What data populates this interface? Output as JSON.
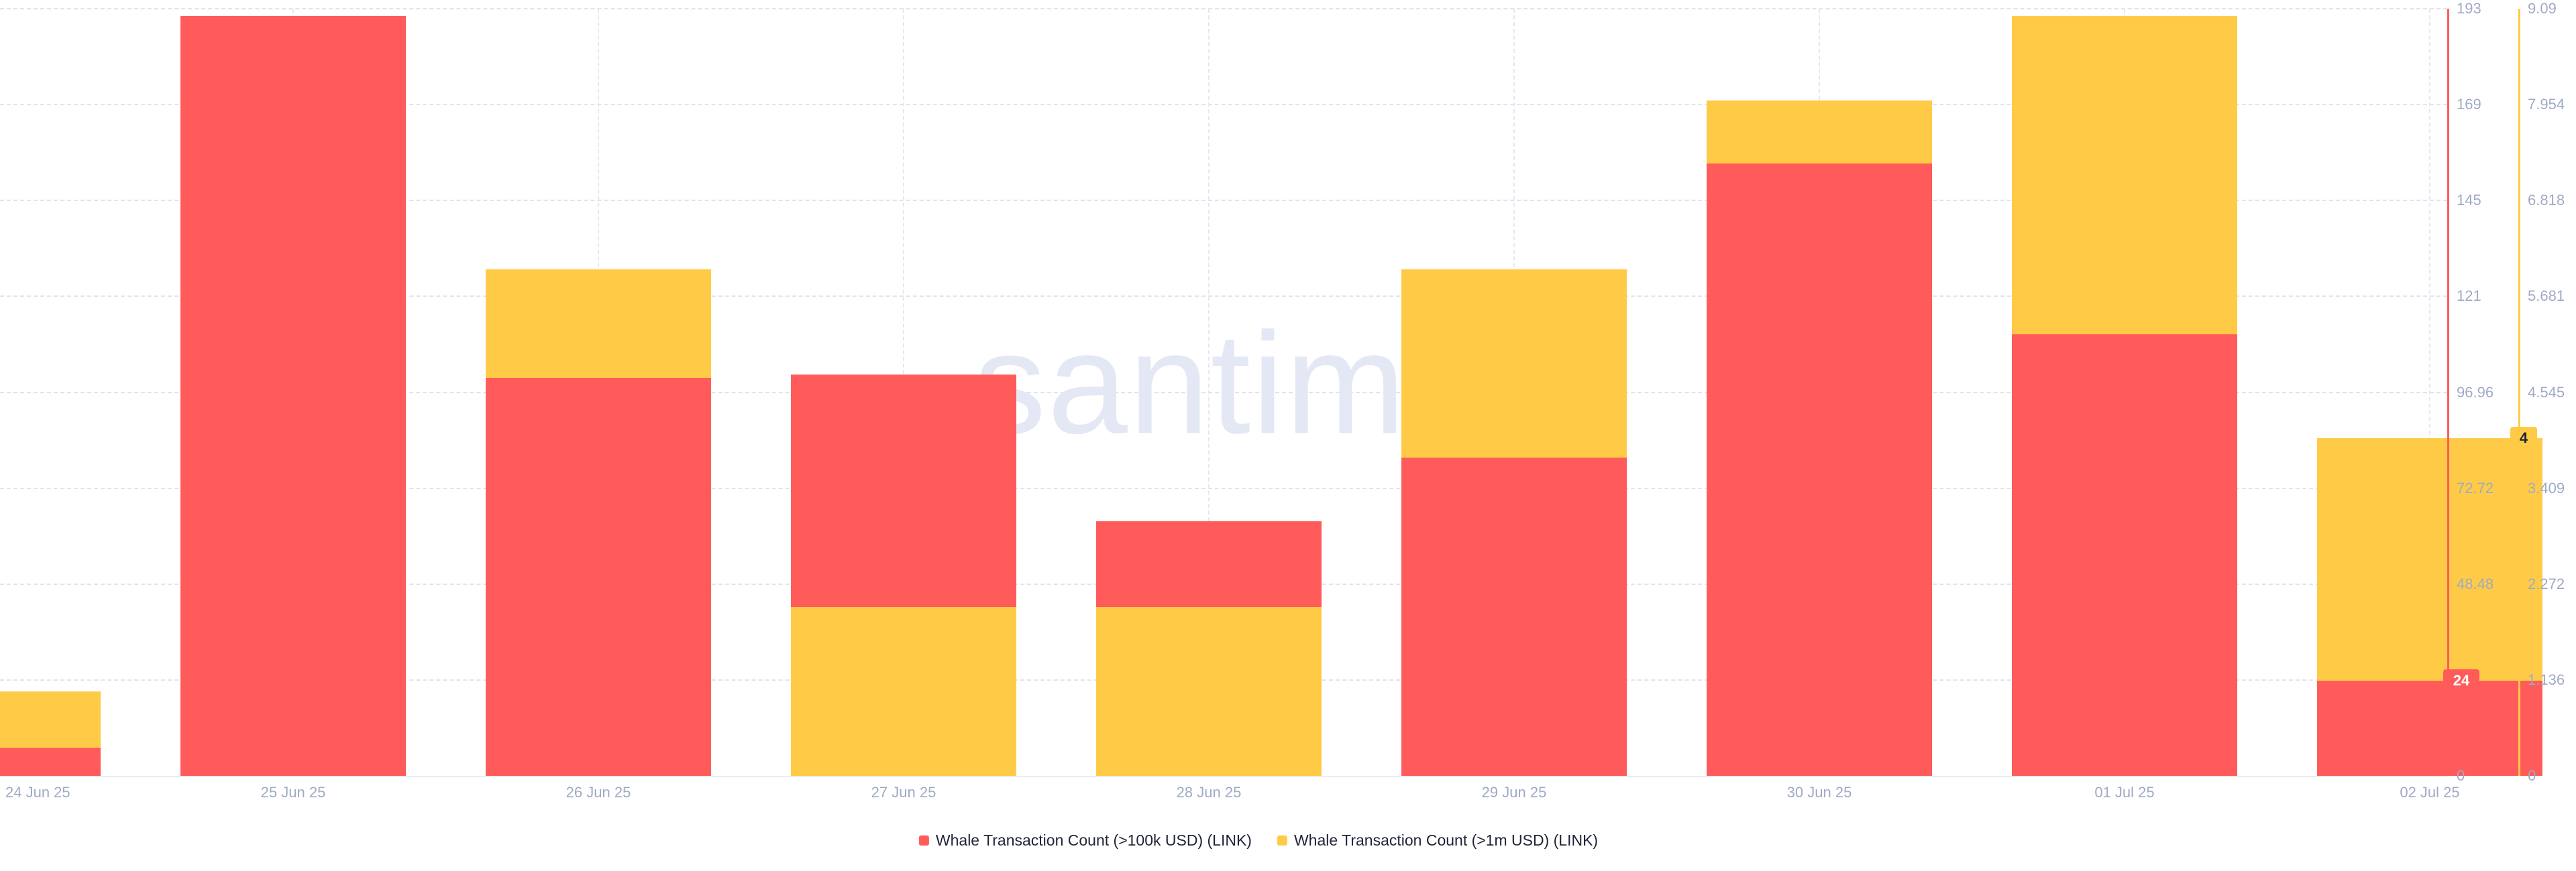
{
  "watermark": ".santiment",
  "chart_data": {
    "type": "bar",
    "subtype": "overlapped dual-axis bars (shorter bar drawn in front)",
    "title": "",
    "categories": [
      "24 Jun 25",
      "25 Jun 25",
      "26 Jun 25",
      "27 Jun 25",
      "28 Jun 25",
      "29 Jun 25",
      "30 Jun 25",
      "01 Jul 25",
      "02 Jul 25"
    ],
    "series": [
      {
        "name": "Whale Transaction Count (>100k USD) (LINK)",
        "axis": "left",
        "color": "#ff5b5b",
        "values": [
          7,
          191,
          100,
          101,
          64,
          80,
          154,
          111,
          24
        ]
      },
      {
        "name": "Whale Transaction Count (>1m USD) (LINK)",
        "axis": "right",
        "color": "#ffcb47",
        "values": [
          1,
          0,
          6,
          2,
          2,
          6,
          8,
          9,
          4
        ]
      }
    ],
    "left_axis": {
      "color": "#ff5b5b",
      "min": 0,
      "max": 192.91,
      "tick_labels_top_to_bottom": [
        "193",
        "169",
        "145",
        "121",
        "96.96",
        "72.72",
        "48.48",
        "24",
        "0"
      ],
      "current_value_badge": "24"
    },
    "right_axis": {
      "color": "#ffcb47",
      "min": 0,
      "max": 9.09,
      "tick_labels_top_to_bottom": [
        "9.09",
        "7.954",
        "6.818",
        "5.681",
        "4.545",
        "3.409",
        "2.272",
        "1.136",
        "0"
      ],
      "current_value_badge": "4"
    },
    "grid": "dashed horizontal and vertical gridlines",
    "legend_position": "bottom-center",
    "colors": {
      "red_series": "#ff5b5b",
      "yellow_series": "#ffcb47",
      "axis_text": "#9faac4",
      "legend_text": "#1f2336",
      "gridline": "#dfe4ef",
      "watermark": "#e4e8f4",
      "background": "#ffffff"
    }
  },
  "legend": {
    "items": [
      {
        "label": "Whale Transaction Count (>100k USD) (LINK)",
        "color": "#ff5b5b"
      },
      {
        "label": "Whale Transaction Count (>1m USD) (LINK)",
        "color": "#ffcb47"
      }
    ]
  }
}
